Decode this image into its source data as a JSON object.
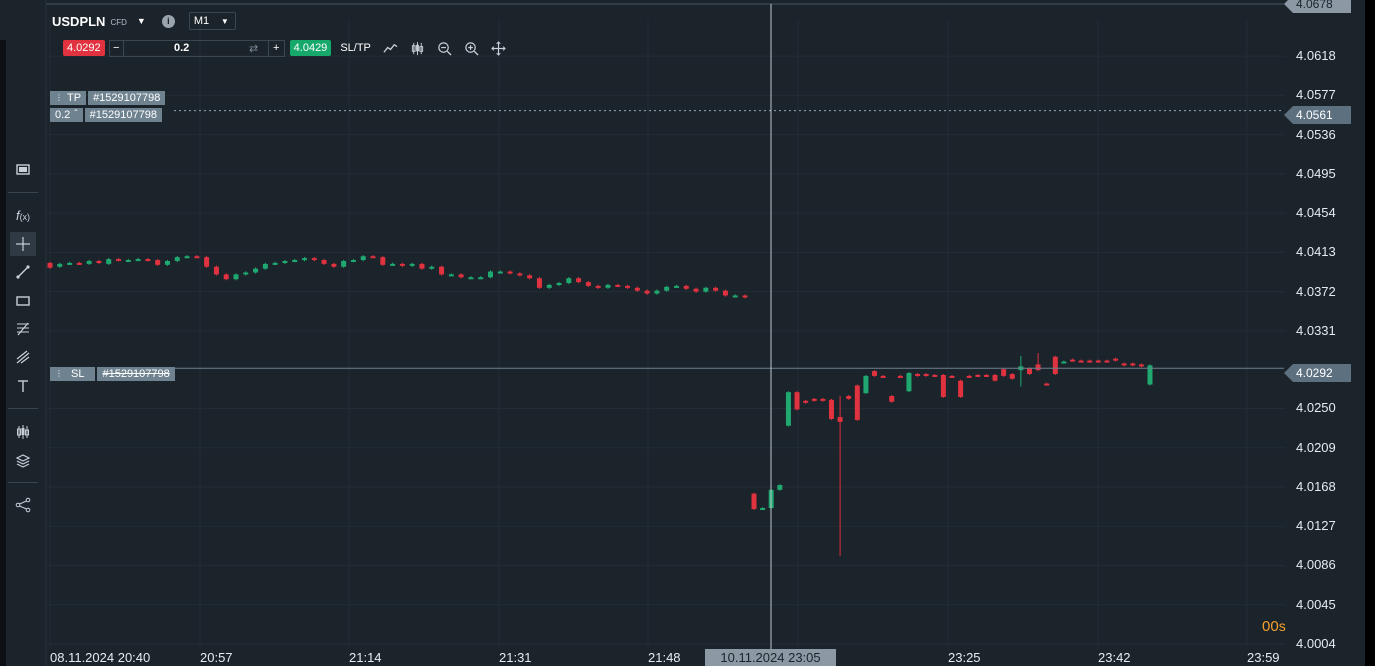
{
  "header": {
    "symbol": "USDPLN",
    "symbol_type": "CFD",
    "timeframe": "M1"
  },
  "trade": {
    "sell_price": "4.0292",
    "quantity": "0.2",
    "buy_price": "4.0429",
    "sltp_label": "SL/TP"
  },
  "orders": {
    "tp": {
      "label": "TP",
      "id": "#1529107798"
    },
    "position": {
      "quantity": "0.2",
      "id": "#1529107798"
    },
    "sl": {
      "label": "SL",
      "id": "#1529107798"
    }
  },
  "price_tags": {
    "top": "4.0678",
    "position": "4.0561",
    "current": "4.0292"
  },
  "countdown": {
    "value": "00",
    "unit": "s"
  },
  "crosshair_time": "10.11.2024 23:05",
  "chart_data": {
    "type": "candlestick",
    "symbol": "USDPLN",
    "timeframe": "M1",
    "y_ticks": [
      "4.0618",
      "4.0577",
      "4.0536",
      "4.0495",
      "4.0454",
      "4.0413",
      "4.0372",
      "4.0331",
      "4.0250",
      "4.0209",
      "4.0168",
      "4.0127",
      "4.0086",
      "4.0045",
      "4.0004"
    ],
    "x_ticks": [
      "08.11.2024 20:40",
      "20:57",
      "21:14",
      "21:31",
      "21:48",
      "23:25",
      "23:42",
      "23:59"
    ],
    "ylim": [
      4.0004,
      4.0678
    ],
    "lines": {
      "tp": 4.0561,
      "position": 4.0561,
      "sl": 4.0292
    },
    "candles_session1": [
      [
        4.0402,
        4.0397
      ],
      [
        4.0398,
        4.0401
      ],
      [
        4.0401,
        4.0402
      ],
      [
        4.0402,
        4.0401
      ],
      [
        4.0401,
        4.0404
      ],
      [
        4.0404,
        4.0402
      ],
      [
        4.0401,
        4.0406
      ],
      [
        4.0406,
        4.0405
      ],
      [
        4.0405,
        4.0405
      ],
      [
        4.0405,
        4.0406
      ],
      [
        4.0406,
        4.0405
      ],
      [
        4.0405,
        4.04
      ],
      [
        4.04,
        4.0404
      ],
      [
        4.0404,
        4.0408
      ],
      [
        4.0408,
        4.0409
      ],
      [
        4.0409,
        4.0408
      ],
      [
        4.0408,
        4.0398
      ],
      [
        4.0398,
        4.039
      ],
      [
        4.039,
        4.0385
      ],
      [
        4.0385,
        4.039
      ],
      [
        4.039,
        4.0392
      ],
      [
        4.0392,
        4.0396
      ],
      [
        4.0396,
        4.0401
      ],
      [
        4.0401,
        4.0402
      ],
      [
        4.0402,
        4.0404
      ],
      [
        4.0404,
        4.0405
      ],
      [
        4.0405,
        4.0407
      ],
      [
        4.0407,
        4.0405
      ],
      [
        4.0405,
        4.0401
      ],
      [
        4.0401,
        4.0398
      ],
      [
        4.0398,
        4.0404
      ],
      [
        4.0404,
        4.0405
      ],
      [
        4.0405,
        4.0409
      ],
      [
        4.0409,
        4.0408
      ],
      [
        4.0408,
        4.04
      ],
      [
        4.04,
        4.0401
      ],
      [
        4.0401,
        4.0399
      ],
      [
        4.0399,
        4.0401
      ],
      [
        4.0401,
        4.0396
      ],
      [
        4.0396,
        4.0398
      ],
      [
        4.0398,
        4.039
      ],
      [
        4.039,
        4.039
      ],
      [
        4.039,
        4.0387
      ],
      [
        4.0387,
        4.0387
      ],
      [
        4.0387,
        4.0387
      ],
      [
        4.0387,
        4.0393
      ],
      [
        4.0393,
        4.0393
      ],
      [
        4.0393,
        4.0391
      ],
      [
        4.0391,
        4.0389
      ],
      [
        4.0389,
        4.0386
      ],
      [
        4.0386,
        4.0376
      ],
      [
        4.0376,
        4.0379
      ],
      [
        4.0379,
        4.0381
      ],
      [
        4.0381,
        4.0386
      ],
      [
        4.0386,
        4.0382
      ],
      [
        4.0382,
        4.0378
      ],
      [
        4.0378,
        4.0376
      ],
      [
        4.0376,
        4.0379
      ],
      [
        4.0379,
        4.0378
      ],
      [
        4.0378,
        4.0376
      ],
      [
        4.0376,
        4.0373
      ],
      [
        4.0373,
        4.037
      ],
      [
        4.037,
        4.0373
      ],
      [
        4.0373,
        4.0377
      ],
      [
        4.0377,
        4.0378
      ],
      [
        4.0378,
        4.0375
      ],
      [
        4.0375,
        4.0372
      ],
      [
        4.0372,
        4.0376
      ],
      [
        4.0376,
        4.0373
      ],
      [
        4.0373,
        4.0368
      ],
      [
        4.0368,
        4.0368
      ],
      [
        4.0368,
        4.0366
      ]
    ],
    "candles_session2": [
      [
        4.0161,
        4.0145
      ],
      [
        4.0145,
        4.0146
      ],
      [
        4.0146,
        4.0165
      ],
      [
        4.0165,
        4.017
      ],
      [
        4.0232,
        4.0267
      ],
      [
        4.0267,
        4.0249
      ],
      [
        4.0258,
        4.0256
      ],
      [
        4.026,
        4.0258
      ],
      [
        4.026,
        4.0258
      ],
      [
        4.0259,
        4.0239
      ],
      [
        4.0241,
        4.0236
      ],
      [
        4.0263,
        4.026
      ],
      [
        4.0274,
        4.0238
      ],
      [
        4.0266,
        4.0284
      ],
      [
        4.0289,
        4.0284
      ],
      [
        4.0284,
        4.0283
      ],
      [
        4.0263,
        4.0257
      ],
      [
        4.0284,
        4.0283
      ],
      [
        4.0268,
        4.0287
      ],
      [
        4.0286,
        4.0284
      ],
      [
        4.0286,
        4.0284
      ],
      [
        4.0285,
        4.0284
      ],
      [
        4.0285,
        4.0262
      ],
      [
        4.0284,
        4.0283
      ],
      [
        4.0279,
        4.0262
      ],
      [
        4.0284,
        4.0283
      ],
      [
        4.0285,
        4.0284
      ],
      [
        4.0285,
        4.0284
      ],
      [
        4.0285,
        4.0279
      ],
      [
        4.0291,
        4.0284
      ],
      [
        4.0286,
        4.0281
      ],
      [
        4.029,
        4.0294
      ],
      [
        4.0292,
        4.0286
      ],
      [
        4.0296,
        4.029
      ],
      [
        4.0276,
        4.0275
      ],
      [
        4.0304,
        4.0286
      ],
      [
        4.0298,
        4.0299
      ],
      [
        4.0301,
        4.03
      ],
      [
        4.03,
        4.0299
      ],
      [
        4.03,
        4.0299
      ],
      [
        4.03,
        4.0299
      ],
      [
        4.03,
        4.0299
      ],
      [
        4.0302,
        4.03
      ],
      [
        4.0297,
        4.0295
      ],
      [
        4.0297,
        4.0295
      ],
      [
        4.0296,
        4.0294
      ],
      [
        4.0275,
        4.0295
      ]
    ]
  }
}
